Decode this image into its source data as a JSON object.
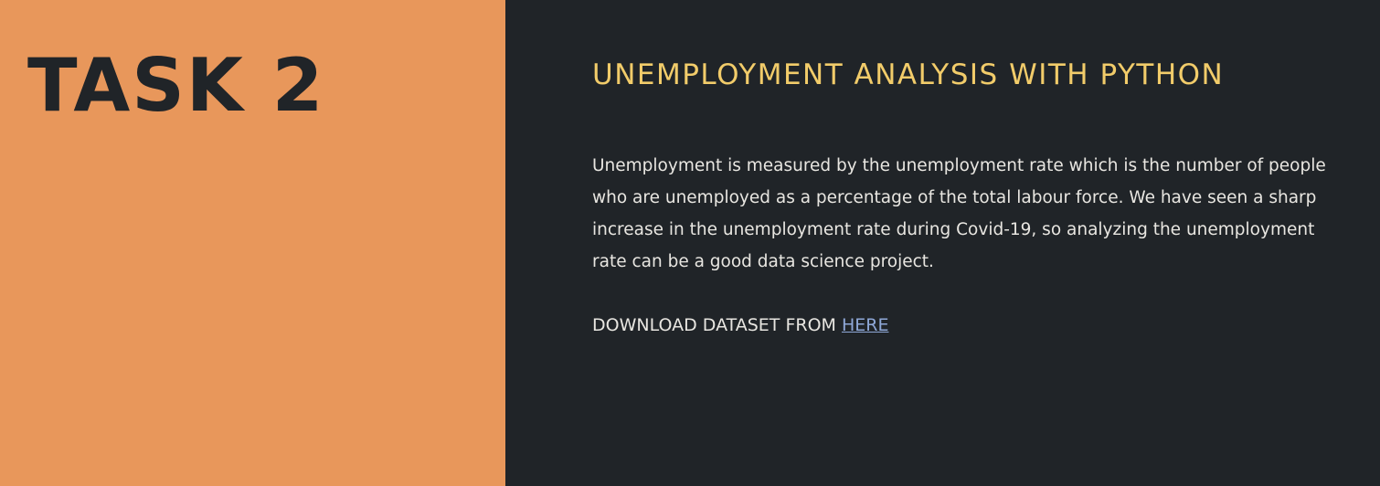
{
  "left_panel": {
    "title": "TASK 2"
  },
  "right_panel": {
    "heading": "UNEMPLOYMENT ANALYSIS WITH PYTHON",
    "description": "Unemployment is measured by the unemployment rate which is the number of people who are unemployed as a percentage of the total labour force. We have seen a sharp increase in the unemployment rate during Covid-19, so analyzing the unemployment rate can be a good data science project.",
    "download_prefix": "DOWNLOAD DATASET FROM ",
    "download_link_text": "HERE"
  },
  "colors": {
    "left_background": "#e8975b",
    "right_background": "#202428",
    "heading_color": "#f2cc6a",
    "link_color": "#8fa8d8"
  }
}
